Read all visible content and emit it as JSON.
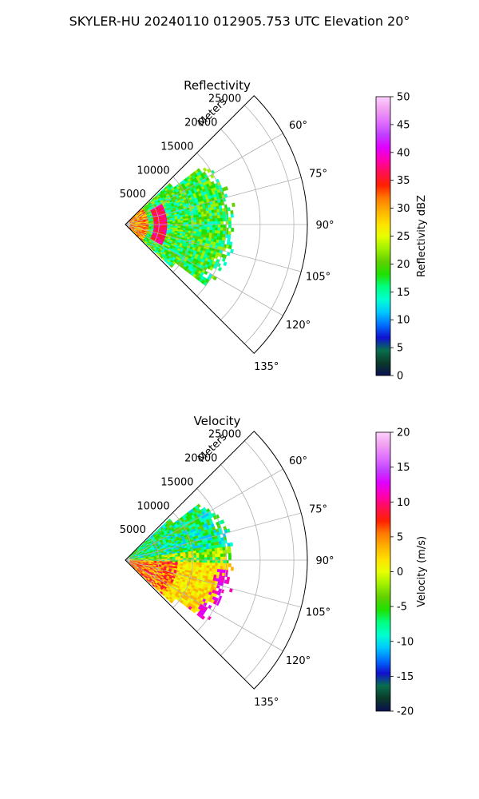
{
  "figure": {
    "suptitle": "SKYLER-HU  20240110  012905.753 UTC Elevation 20°"
  },
  "chart_data": [
    {
      "type": "polar-sector-heatmap",
      "title": "Reflectivity",
      "range_label": "Meters",
      "range_ticks": [
        "5000",
        "10000",
        "15000",
        "20000",
        "25000"
      ],
      "range_tick_values": [
        5000,
        10000,
        15000,
        20000,
        25000
      ],
      "range_max": 27000,
      "azimuth_ticks": [
        "60°",
        "75°",
        "90°",
        "105°",
        "120°",
        "135°"
      ],
      "azimuth_tick_values": [
        60,
        75,
        90,
        105,
        120,
        135
      ],
      "azimuth_range": [
        45,
        135
      ],
      "grid": true,
      "colorbar": {
        "label": "Reflectivity dBZ",
        "ticks": [
          "0",
          "5",
          "10",
          "15",
          "20",
          "25",
          "30",
          "35",
          "40",
          "45",
          "50"
        ],
        "range": [
          0,
          50
        ],
        "stops": [
          "#0a1050",
          "#0b3a28",
          "#0a6e50",
          "#1010d0",
          "#0070ff",
          "#00c8ff",
          "#00ffd0",
          "#00ff80",
          "#20e000",
          "#60d000",
          "#a0f000",
          "#e8ff00",
          "#ffe000",
          "#ffb000",
          "#ff7a00",
          "#ff2000",
          "#ff1050",
          "#ff00b0",
          "#e000ff",
          "#c040ff",
          "#e070ff",
          "#f0a0f0",
          "#ffd0ff"
        ]
      }
    },
    {
      "type": "polar-sector-heatmap",
      "title": "Velocity",
      "range_label": "Meters",
      "range_ticks": [
        "5000",
        "10000",
        "15000",
        "20000",
        "25000"
      ],
      "range_tick_values": [
        5000,
        10000,
        15000,
        20000,
        25000
      ],
      "range_max": 27000,
      "azimuth_ticks": [
        "60°",
        "75°",
        "90°",
        "105°",
        "120°",
        "135°"
      ],
      "azimuth_tick_values": [
        60,
        75,
        90,
        105,
        120,
        135
      ],
      "azimuth_range": [
        45,
        135
      ],
      "grid": true,
      "colorbar": {
        "label": "Velocity (m/s)",
        "ticks": [
          "-20",
          "-15",
          "-10",
          "-5",
          "0",
          "5",
          "10",
          "15",
          "20"
        ],
        "range": [
          -20,
          20
        ],
        "stops": [
          "#0a1050",
          "#0b3a28",
          "#0a6e50",
          "#1010d0",
          "#0070ff",
          "#00c8ff",
          "#00ffd0",
          "#00ff80",
          "#20e000",
          "#60d000",
          "#a0f000",
          "#e8ff00",
          "#ffe000",
          "#ffb000",
          "#ff7a00",
          "#ff2000",
          "#ff1050",
          "#ff00b0",
          "#e000ff",
          "#c040ff",
          "#e070ff",
          "#f0a0f0",
          "#ffd0ff"
        ]
      }
    }
  ]
}
